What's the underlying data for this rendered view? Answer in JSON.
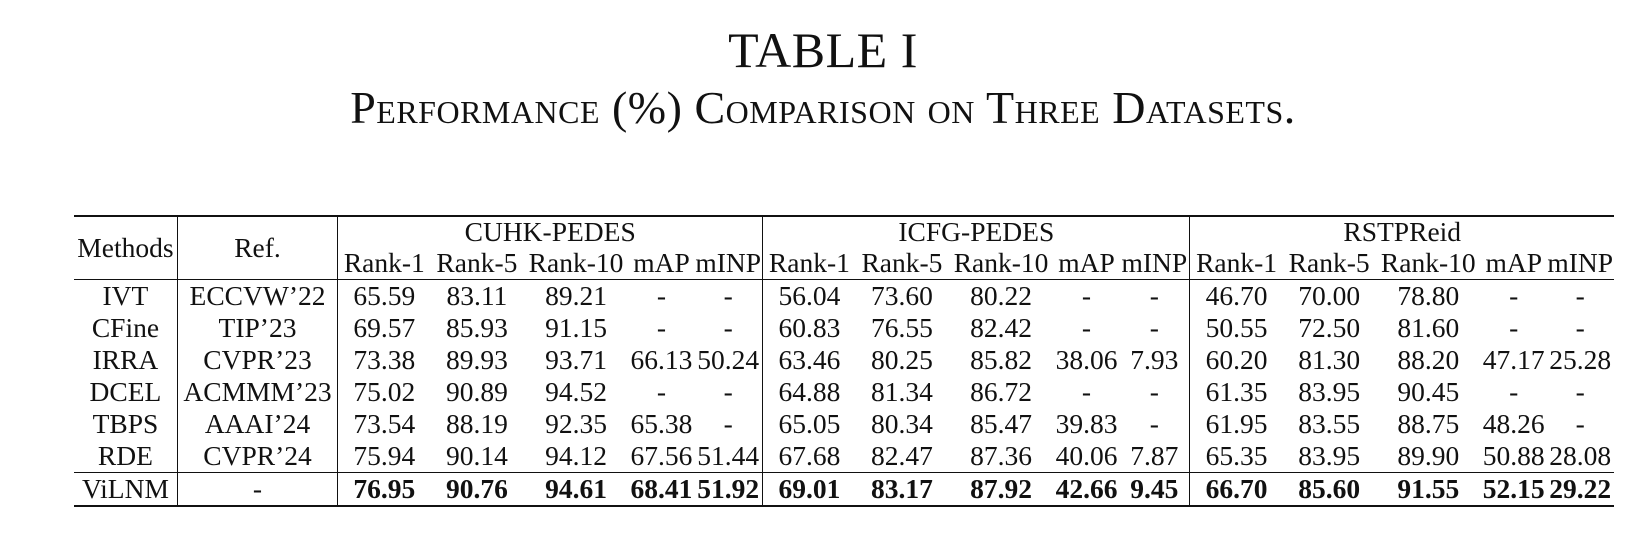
{
  "caption": {
    "label": "TABLE I",
    "title": "Performance (%) Comparison on Three Datasets."
  },
  "table": {
    "methods_header": "Methods",
    "ref_header": "Ref.",
    "datasets": [
      "CUHK-PEDES",
      "ICFG-PEDES",
      "RSTPReid"
    ],
    "metrics": [
      "Rank-1",
      "Rank-5",
      "Rank-10",
      "mAP",
      "mINP"
    ],
    "rows": [
      {
        "method": "IVT",
        "ref": "ECCVW’22",
        "values": [
          "65.59",
          "83.11",
          "89.21",
          "-",
          "-",
          "56.04",
          "73.60",
          "80.22",
          "-",
          "-",
          "46.70",
          "70.00",
          "78.80",
          "-",
          "-"
        ]
      },
      {
        "method": "CFine",
        "ref": "TIP’23",
        "values": [
          "69.57",
          "85.93",
          "91.15",
          "-",
          "-",
          "60.83",
          "76.55",
          "82.42",
          "-",
          "-",
          "50.55",
          "72.50",
          "81.60",
          "-",
          "-"
        ]
      },
      {
        "method": "IRRA",
        "ref": "CVPR’23",
        "values": [
          "73.38",
          "89.93",
          "93.71",
          "66.13",
          "50.24",
          "63.46",
          "80.25",
          "85.82",
          "38.06",
          "7.93",
          "60.20",
          "81.30",
          "88.20",
          "47.17",
          "25.28"
        ]
      },
      {
        "method": "DCEL",
        "ref": "ACMMM’23",
        "values": [
          "75.02",
          "90.89",
          "94.52",
          "-",
          "-",
          "64.88",
          "81.34",
          "86.72",
          "-",
          "-",
          "61.35",
          "83.95",
          "90.45",
          "-",
          "-"
        ]
      },
      {
        "method": "TBPS",
        "ref": "AAAI’24",
        "values": [
          "73.54",
          "88.19",
          "92.35",
          "65.38",
          "-",
          "65.05",
          "80.34",
          "85.47",
          "39.83",
          "-",
          "61.95",
          "83.55",
          "88.75",
          "48.26",
          "-"
        ]
      },
      {
        "method": "RDE",
        "ref": "CVPR’24",
        "values": [
          "75.94",
          "90.14",
          "94.12",
          "67.56",
          "51.44",
          "67.68",
          "82.47",
          "87.36",
          "40.06",
          "7.87",
          "65.35",
          "83.95",
          "89.90",
          "50.88",
          "28.08"
        ]
      }
    ],
    "best_row": {
      "method": "ViLNM",
      "ref": "-",
      "values": [
        "76.95",
        "90.76",
        "94.61",
        "68.41",
        "51.92",
        "69.01",
        "83.17",
        "87.92",
        "42.66",
        "9.45",
        "66.70",
        "85.60",
        "91.55",
        "52.15",
        "29.22"
      ]
    }
  }
}
